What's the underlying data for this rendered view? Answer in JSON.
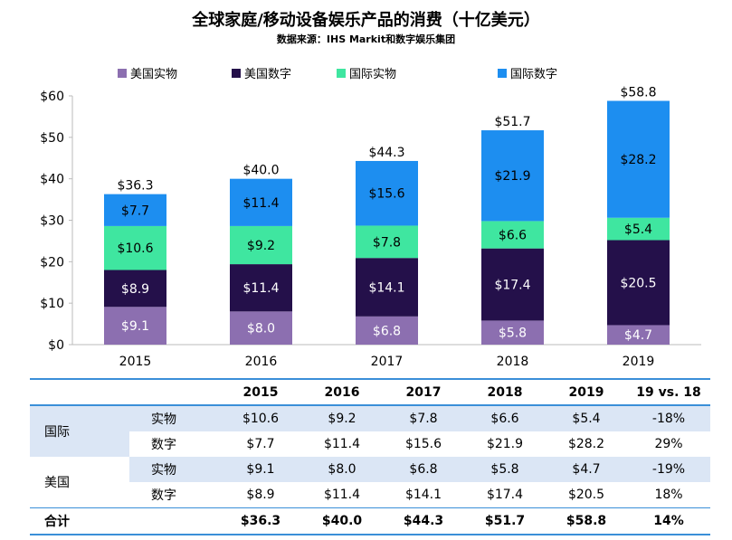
{
  "title": "全球家庭/移动设备娱乐产品的消费（十亿美元）",
  "subtitle": "数据来源：IHS Markit和数字娱乐集团",
  "colors": {
    "us_physical": "#8c6fb0",
    "us_digital": "#24104a",
    "intl_physical": "#3fe6a0",
    "intl_digital": "#1d8ef0"
  },
  "chart_data": {
    "type": "bar",
    "stacked": true,
    "categories": [
      "2015",
      "2016",
      "2017",
      "2018",
      "2019"
    ],
    "series": [
      {
        "name": "美国实物",
        "values": [
          9.1,
          8.0,
          6.8,
          5.8,
          4.7
        ],
        "labels": [
          "$9.1",
          "$8.0",
          "$6.8",
          "$5.8",
          "$4.7"
        ]
      },
      {
        "name": "美国数字",
        "values": [
          8.9,
          11.4,
          14.1,
          17.4,
          20.5
        ],
        "labels": [
          "$8.9",
          "$11.4",
          "$14.1",
          "$17.4",
          "$20.5"
        ]
      },
      {
        "name": "国际实物",
        "values": [
          10.6,
          9.2,
          7.8,
          6.6,
          5.4
        ],
        "labels": [
          "$10.6",
          "$9.2",
          "$7.8",
          "$6.6",
          "$5.4"
        ]
      },
      {
        "name": "国际数字",
        "values": [
          7.7,
          11.4,
          15.6,
          21.9,
          28.2
        ],
        "labels": [
          "$7.7",
          "$11.4",
          "$15.6",
          "$21.9",
          "$28.2"
        ]
      }
    ],
    "totals": [
      36.3,
      40.0,
      44.3,
      51.7,
      58.8
    ],
    "total_labels": [
      "$36.3",
      "$40.0",
      "$44.3",
      "$51.7",
      "$58.8"
    ],
    "ylim": [
      0,
      60
    ],
    "yticks": [
      0,
      10,
      20,
      30,
      40,
      50,
      60
    ],
    "ytick_labels": [
      "$0",
      "$10",
      "$20",
      "$30",
      "$40",
      "$50",
      "$60"
    ],
    "grid": false,
    "legend_position": "top"
  },
  "table": {
    "headers": [
      "2015",
      "2016",
      "2017",
      "2018",
      "2019",
      "19 vs. 18"
    ],
    "rows": [
      {
        "group": "国际",
        "sub": "实物",
        "values": [
          "$10.6",
          "$9.2",
          "$7.8",
          "$6.6",
          "$5.4",
          "-18%"
        ]
      },
      {
        "sub": "数字",
        "values": [
          "$7.7",
          "$11.4",
          "$15.6",
          "$21.9",
          "$28.2",
          "29%"
        ]
      },
      {
        "group": "美国",
        "sub": "实物",
        "values": [
          "$9.1",
          "$8.0",
          "$6.8",
          "$5.8",
          "$4.7",
          "-19%"
        ]
      },
      {
        "sub": "数字",
        "values": [
          "$8.9",
          "$11.4",
          "$14.1",
          "$17.4",
          "$20.5",
          "18%"
        ]
      }
    ],
    "total": {
      "label": "合计",
      "values": [
        "$36.3",
        "$40.0",
        "$44.3",
        "$51.7",
        "$58.8",
        "14%"
      ]
    }
  }
}
